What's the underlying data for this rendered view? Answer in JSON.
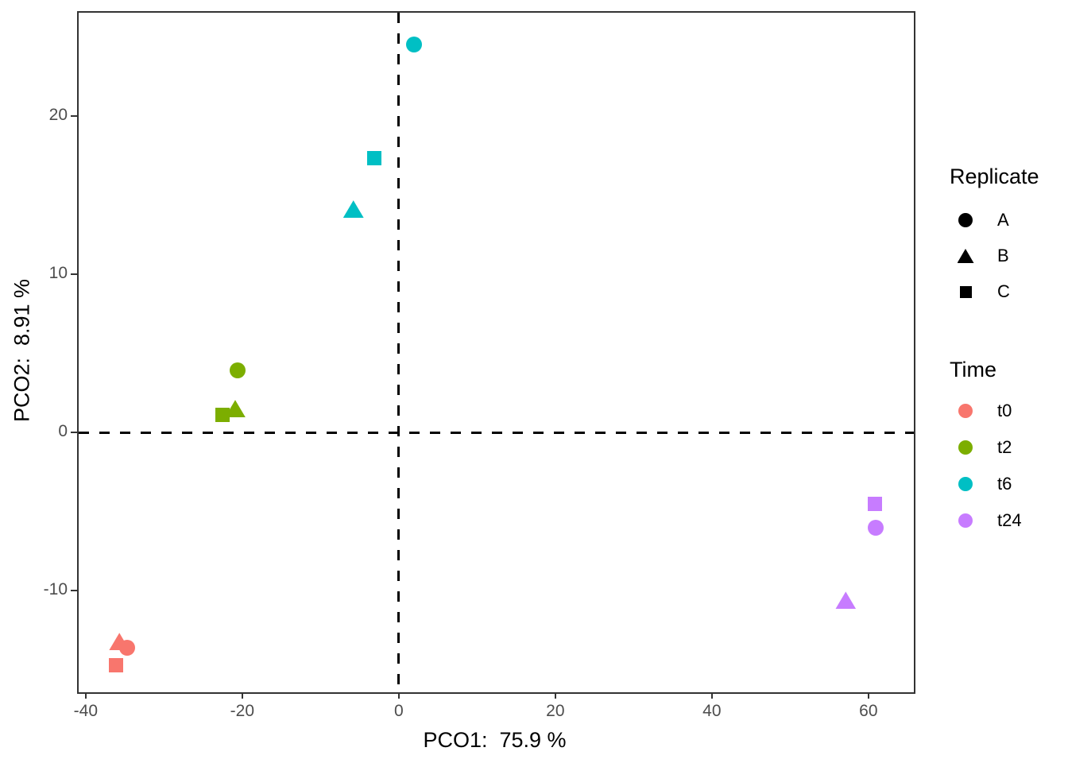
{
  "chart_data": {
    "type": "scatter",
    "xlabel": "PCO1:  75.9 %",
    "ylabel": "PCO2:  8.91 %",
    "xlim": [
      -40.9,
      65.8
    ],
    "ylim": [
      -16.4,
      26.5
    ],
    "x_ticks": [
      -40,
      -20,
      0,
      20,
      40,
      60
    ],
    "y_ticks": [
      20,
      10,
      0,
      -10
    ],
    "grid": false,
    "legend_position": "right",
    "reference_lines": {
      "x": 0,
      "y": 0,
      "style": "dashed",
      "color": "#000000"
    },
    "series": [
      {
        "name": "t0",
        "color": "#F8766D",
        "points": [
          {
            "replicate": "A",
            "shape": "circle",
            "x": -34.7,
            "y": -13.6
          },
          {
            "replicate": "B",
            "shape": "triangle",
            "x": -35.7,
            "y": -13.2
          },
          {
            "replicate": "C",
            "shape": "square",
            "x": -36.1,
            "y": -14.7
          }
        ]
      },
      {
        "name": "t2",
        "color": "#7CAE00",
        "points": [
          {
            "replicate": "A",
            "shape": "circle",
            "x": -20.6,
            "y": 3.9
          },
          {
            "replicate": "B",
            "shape": "triangle",
            "x": -20.9,
            "y": 1.5
          },
          {
            "replicate": "C",
            "shape": "square",
            "x": -22.5,
            "y": 1.1
          }
        ]
      },
      {
        "name": "t6",
        "color": "#00BFC4",
        "points": [
          {
            "replicate": "A",
            "shape": "circle",
            "x": 1.9,
            "y": 24.5
          },
          {
            "replicate": "B",
            "shape": "triangle",
            "x": -5.8,
            "y": 14.1
          },
          {
            "replicate": "C",
            "shape": "square",
            "x": -3.1,
            "y": 17.3
          }
        ]
      },
      {
        "name": "t24",
        "color": "#C77CFF",
        "points": [
          {
            "replicate": "A",
            "shape": "circle",
            "x": 60.9,
            "y": -6.0
          },
          {
            "replicate": "B",
            "shape": "triangle",
            "x": 57.1,
            "y": -10.6
          },
          {
            "replicate": "C",
            "shape": "square",
            "x": 60.8,
            "y": -4.5
          }
        ]
      }
    ],
    "legend": {
      "replicate": {
        "title": "Replicate",
        "items": [
          {
            "label": "A",
            "shape": "circle"
          },
          {
            "label": "B",
            "shape": "triangle"
          },
          {
            "label": "C",
            "shape": "square"
          }
        ]
      },
      "time": {
        "title": "Time",
        "items": [
          {
            "label": "t0",
            "color": "#F8766D"
          },
          {
            "label": "t2",
            "color": "#7CAE00"
          },
          {
            "label": "t6",
            "color": "#00BFC4"
          },
          {
            "label": "t24",
            "color": "#C77CFF"
          }
        ]
      }
    },
    "style": {
      "background": "#FFFFFF",
      "panel_border": "#333333",
      "tick_label_color": "#4D4D4D",
      "axis_title_color": "#000000",
      "legend_symbol_color_replicate": "#000000"
    }
  }
}
